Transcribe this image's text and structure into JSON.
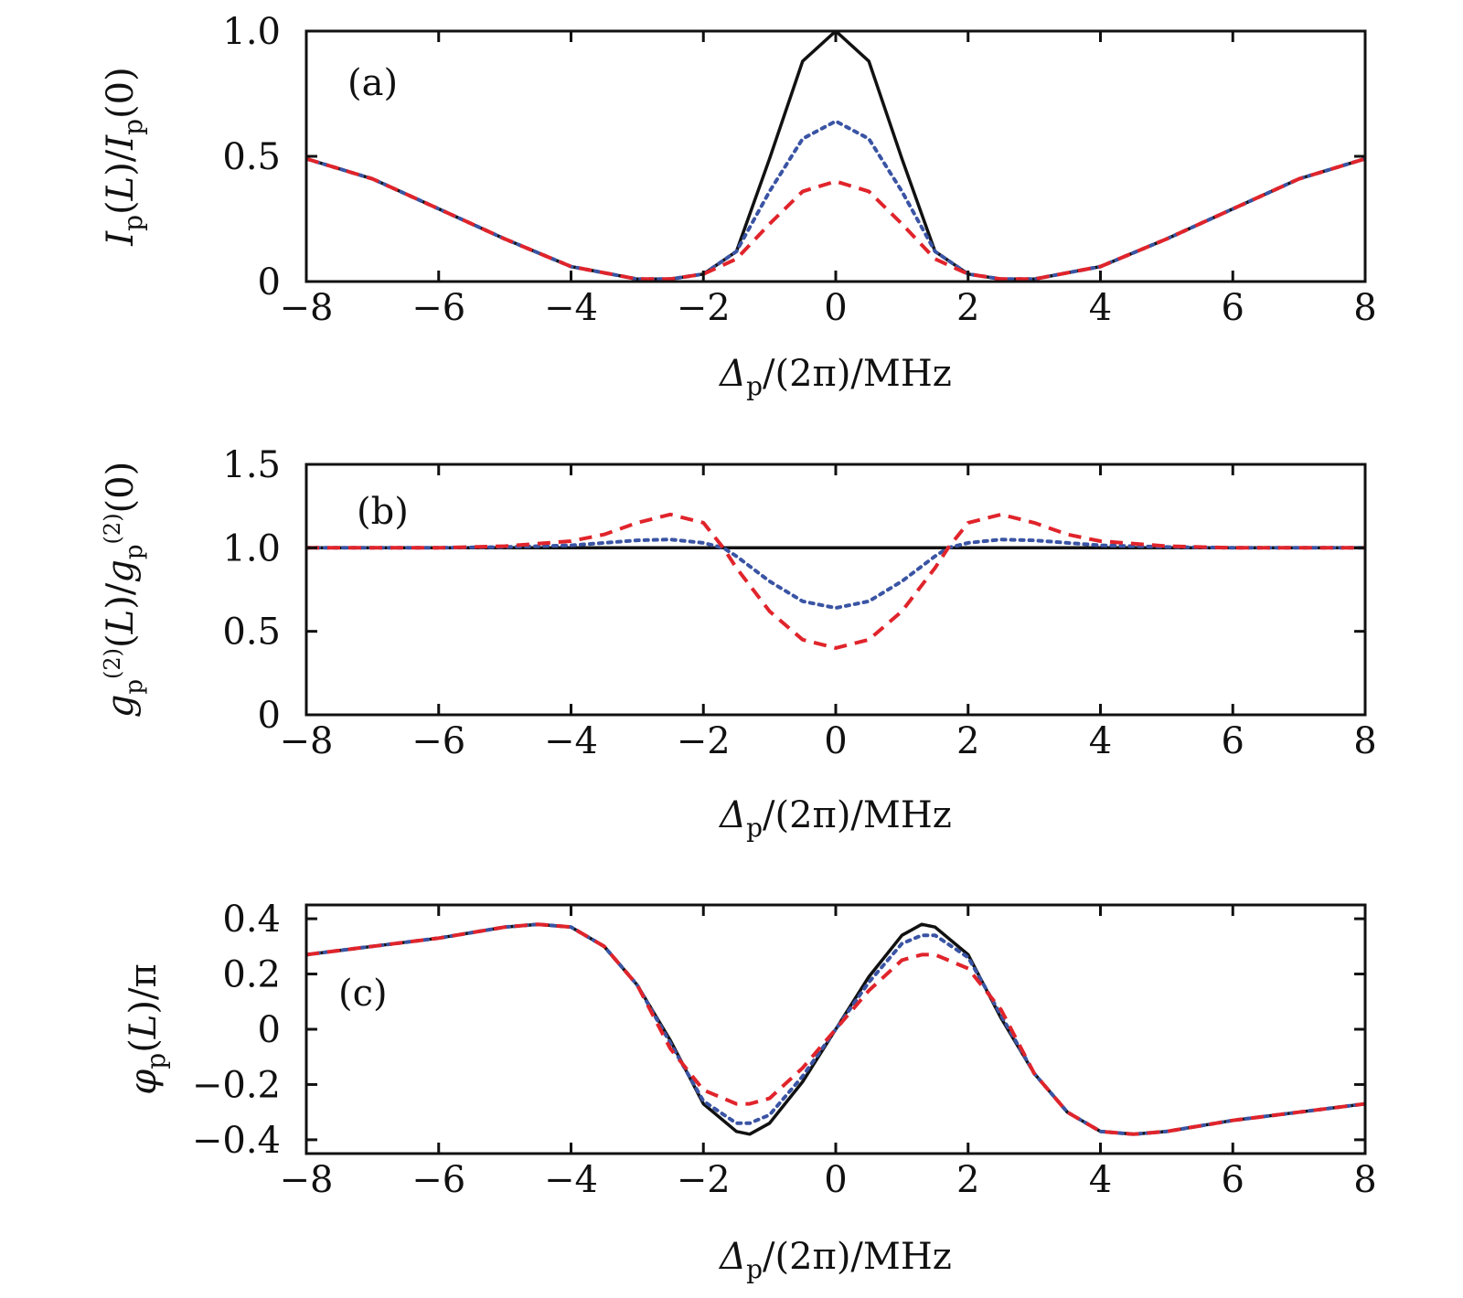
{
  "chart_data": [
    {
      "type": "line",
      "panel": "(a)",
      "xlabel": "Δp/(2π)/MHz",
      "ylabel": "Ip(L)/Ip(0)",
      "xlim": [
        -8,
        8
      ],
      "ylim": [
        0,
        1
      ],
      "xticks": [
        -8,
        -6,
        -4,
        -2,
        0,
        2,
        4,
        6,
        8
      ],
      "xtick_labels": [
        "−8",
        "−6",
        "−4",
        "−2",
        "0",
        "2",
        "4",
        "6",
        "8"
      ],
      "yticks": [
        0,
        0.5,
        1.0
      ],
      "ytick_labels": [
        "0",
        "0.5",
        "1.0"
      ],
      "series": [
        {
          "name": "solid",
          "color": "#111111",
          "dash": "none",
          "x": [
            -8,
            -7,
            -6,
            -5,
            -4,
            -3,
            -2.5,
            -2,
            -1.5,
            -1,
            -0.5,
            0,
            0.5,
            1,
            1.5,
            2,
            2.5,
            3,
            4,
            5,
            6,
            7,
            8
          ],
          "y": [
            0.49,
            0.41,
            0.29,
            0.17,
            0.06,
            0.01,
            0.01,
            0.03,
            0.12,
            0.49,
            0.88,
            1.0,
            0.88,
            0.49,
            0.12,
            0.03,
            0.01,
            0.01,
            0.06,
            0.17,
            0.29,
            0.41,
            0.49
          ]
        },
        {
          "name": "dotted",
          "color": "#3a54a4",
          "dash": "4 6",
          "x": [
            -8,
            -7,
            -6,
            -5,
            -4,
            -3,
            -2.5,
            -2,
            -1.5,
            -1,
            -0.5,
            0,
            0.5,
            1,
            1.5,
            2,
            2.5,
            3,
            4,
            5,
            6,
            7,
            8
          ],
          "y": [
            0.49,
            0.41,
            0.29,
            0.17,
            0.06,
            0.01,
            0.01,
            0.03,
            0.12,
            0.36,
            0.57,
            0.64,
            0.57,
            0.36,
            0.12,
            0.03,
            0.01,
            0.01,
            0.06,
            0.17,
            0.29,
            0.41,
            0.49
          ]
        },
        {
          "name": "dashed",
          "color": "#e0242b",
          "dash": "14 9",
          "x": [
            -8,
            -7,
            -6,
            -5,
            -4,
            -3,
            -2.5,
            -2,
            -1.5,
            -1,
            -0.5,
            0,
            0.5,
            1,
            1.5,
            2,
            2.5,
            3,
            4,
            5,
            6,
            7,
            8
          ],
          "y": [
            0.49,
            0.41,
            0.29,
            0.17,
            0.06,
            0.01,
            0.01,
            0.03,
            0.09,
            0.23,
            0.36,
            0.4,
            0.36,
            0.23,
            0.09,
            0.03,
            0.01,
            0.01,
            0.06,
            0.17,
            0.29,
            0.41,
            0.49
          ]
        }
      ]
    },
    {
      "type": "line",
      "panel": "(b)",
      "xlabel": "Δp/(2π)/MHz",
      "ylabel": "gp(2)(L)/gp(2)(0)",
      "xlim": [
        -8,
        8
      ],
      "ylim": [
        0,
        1.5
      ],
      "xticks": [
        -8,
        -6,
        -4,
        -2,
        0,
        2,
        4,
        6,
        8
      ],
      "xtick_labels": [
        "−8",
        "−6",
        "−4",
        "−2",
        "0",
        "2",
        "4",
        "6",
        "8"
      ],
      "yticks": [
        0,
        0.5,
        1.0,
        1.5
      ],
      "ytick_labels": [
        "0",
        "0.5",
        "1.0",
        "1.5"
      ],
      "series": [
        {
          "name": "solid",
          "color": "#111111",
          "dash": "none",
          "x": [
            -8,
            8
          ],
          "y": [
            1.0,
            1.0
          ]
        },
        {
          "name": "dotted",
          "color": "#3a54a4",
          "dash": "4 6",
          "x": [
            -8,
            -6,
            -5,
            -4,
            -3.5,
            -3,
            -2.5,
            -2,
            -1.7,
            -1.5,
            -1,
            -0.5,
            0,
            0.5,
            1,
            1.5,
            1.7,
            2,
            2.5,
            3,
            3.5,
            4,
            5,
            6,
            8
          ],
          "y": [
            1.0,
            1.0,
            1.005,
            1.015,
            1.03,
            1.045,
            1.05,
            1.03,
            1.0,
            0.95,
            0.8,
            0.68,
            0.64,
            0.68,
            0.8,
            0.95,
            1.0,
            1.03,
            1.05,
            1.045,
            1.03,
            1.015,
            1.005,
            1.0,
            1.0
          ]
        },
        {
          "name": "dashed",
          "color": "#e0242b",
          "dash": "14 9",
          "x": [
            -8,
            -6,
            -5,
            -4,
            -3.5,
            -3,
            -2.5,
            -2,
            -1.7,
            -1.5,
            -1,
            -0.5,
            0,
            0.5,
            1,
            1.5,
            1.7,
            2,
            2.5,
            3,
            3.5,
            4,
            5,
            6,
            8
          ],
          "y": [
            1.0,
            1.0,
            1.01,
            1.04,
            1.08,
            1.15,
            1.2,
            1.15,
            1.0,
            0.88,
            0.62,
            0.45,
            0.4,
            0.45,
            0.62,
            0.88,
            1.0,
            1.15,
            1.2,
            1.15,
            1.08,
            1.04,
            1.01,
            1.0,
            1.0
          ]
        }
      ]
    },
    {
      "type": "line",
      "panel": "(c)",
      "xlabel": "Δp/(2π)/MHz",
      "ylabel": "φp(L)/π",
      "xlim": [
        -8,
        8
      ],
      "ylim": [
        -0.45,
        0.45
      ],
      "xticks": [
        -8,
        -6,
        -4,
        -2,
        0,
        2,
        4,
        6,
        8
      ],
      "xtick_labels": [
        "−8",
        "−6",
        "−4",
        "−2",
        "0",
        "2",
        "4",
        "6",
        "8"
      ],
      "yticks": [
        -0.4,
        -0.2,
        0,
        0.2,
        0.4
      ],
      "ytick_labels": [
        "−0.4",
        "−0.2",
        "0",
        "0.2",
        "0.4"
      ],
      "series": [
        {
          "name": "solid",
          "color": "#111111",
          "dash": "none",
          "x": [
            -8,
            -7,
            -6,
            -5,
            -4.5,
            -4,
            -3.5,
            -3,
            -2.5,
            -2,
            -1.5,
            -1.3,
            -1,
            -0.5,
            0,
            0.5,
            1,
            1.3,
            1.5,
            2,
            2.5,
            3,
            3.5,
            4,
            4.5,
            5,
            6,
            7,
            8
          ],
          "y": [
            0.27,
            0.3,
            0.33,
            0.37,
            0.38,
            0.37,
            0.3,
            0.16,
            -0.04,
            -0.27,
            -0.37,
            -0.38,
            -0.34,
            -0.19,
            0,
            0.19,
            0.34,
            0.38,
            0.37,
            0.27,
            0.04,
            -0.16,
            -0.3,
            -0.37,
            -0.38,
            -0.37,
            -0.33,
            -0.3,
            -0.27
          ]
        },
        {
          "name": "dotted",
          "color": "#3a54a4",
          "dash": "4 6",
          "x": [
            -8,
            -7,
            -6,
            -5,
            -4.5,
            -4,
            -3.5,
            -3,
            -2.5,
            -2,
            -1.5,
            -1.3,
            -1,
            -0.5,
            0,
            0.5,
            1,
            1.3,
            1.5,
            2,
            2.5,
            3,
            3.5,
            4,
            4.5,
            5,
            6,
            7,
            8
          ],
          "y": [
            0.27,
            0.3,
            0.33,
            0.37,
            0.38,
            0.37,
            0.3,
            0.16,
            -0.05,
            -0.26,
            -0.34,
            -0.34,
            -0.31,
            -0.17,
            0,
            0.17,
            0.31,
            0.34,
            0.34,
            0.26,
            0.05,
            -0.16,
            -0.3,
            -0.37,
            -0.38,
            -0.37,
            -0.33,
            -0.3,
            -0.27
          ]
        },
        {
          "name": "dashed",
          "color": "#e0242b",
          "dash": "14 9",
          "x": [
            -8,
            -7,
            -6,
            -5,
            -4.5,
            -4,
            -3.5,
            -3,
            -2.5,
            -2,
            -1.5,
            -1.3,
            -1,
            -0.5,
            0,
            0.5,
            1,
            1.3,
            1.5,
            2,
            2.5,
            3,
            3.5,
            4,
            4.5,
            5,
            6,
            7,
            8
          ],
          "y": [
            0.27,
            0.3,
            0.33,
            0.37,
            0.38,
            0.37,
            0.3,
            0.16,
            -0.07,
            -0.22,
            -0.27,
            -0.27,
            -0.25,
            -0.14,
            0,
            0.14,
            0.25,
            0.27,
            0.27,
            0.22,
            0.07,
            -0.16,
            -0.3,
            -0.37,
            -0.38,
            -0.37,
            -0.33,
            -0.3,
            -0.27
          ]
        }
      ]
    }
  ]
}
